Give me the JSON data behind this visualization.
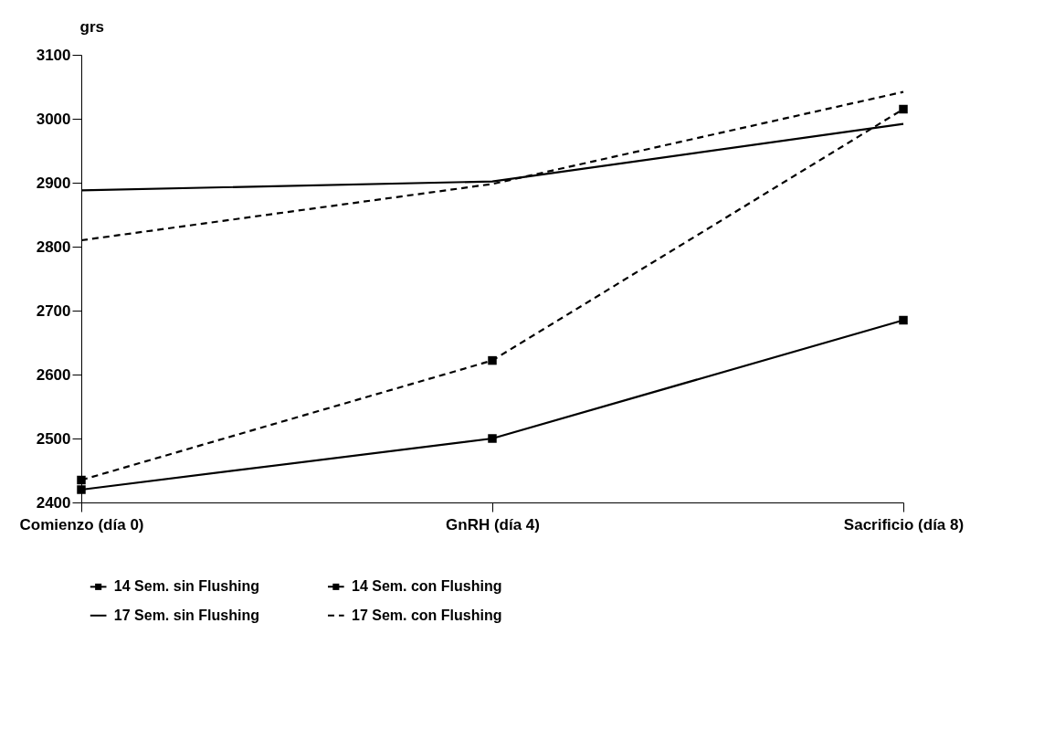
{
  "chart_data": {
    "type": "line",
    "ylabel": "grs",
    "categories": [
      "Comienzo (día 0)",
      "GnRH (día 4)",
      "Sacrificio (día 8)"
    ],
    "ylim": [
      2400,
      3100
    ],
    "yticks": [
      2400,
      2500,
      2600,
      2700,
      2800,
      2900,
      3000,
      3100
    ],
    "grid": false,
    "legend": "bottom",
    "series": [
      {
        "name": "14 Sem. sin Flushing",
        "color": "#000000",
        "marker": "square",
        "line_style": "solid",
        "values": [
          2420,
          2500,
          2685
        ]
      },
      {
        "name": "14 Sem.  con Flushing",
        "color": "#000000",
        "marker": "square",
        "line_style": "dashed",
        "values": [
          2435,
          2622,
          3015
        ]
      },
      {
        "name": "17 Sem. sin Flushing",
        "color": "#000000",
        "marker": "none",
        "line_style": "solid",
        "values": [
          2888,
          2902,
          2992
        ]
      },
      {
        "name": "17 Sem. con Flushing",
        "color": "#000000",
        "marker": "none",
        "line_style": "dashed",
        "values": [
          2810,
          2898,
          3042
        ]
      }
    ]
  }
}
